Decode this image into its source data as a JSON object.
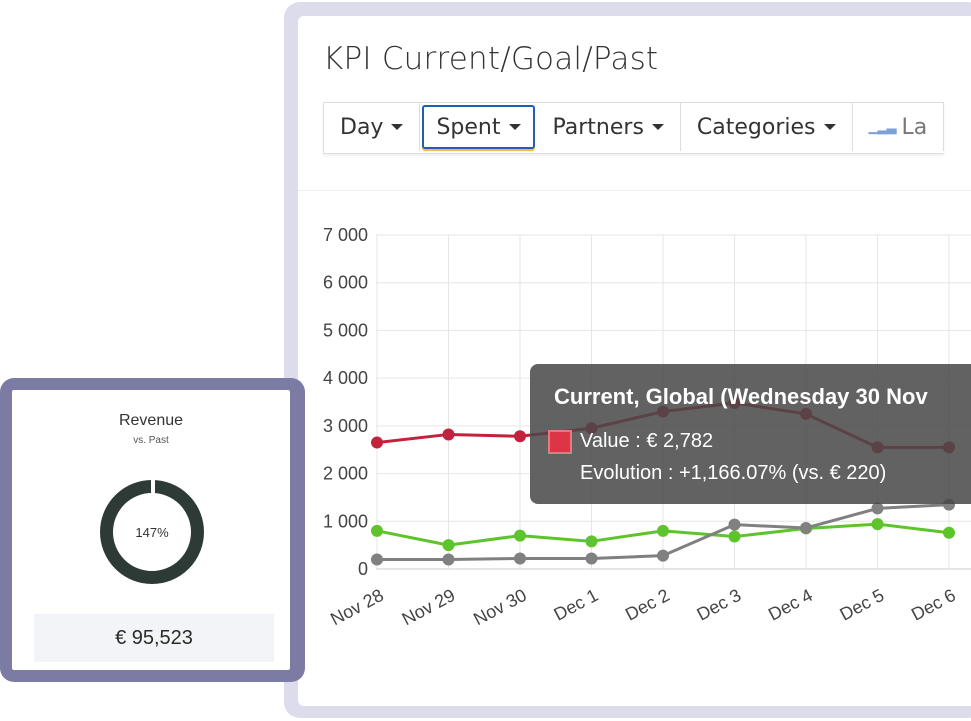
{
  "kpi_panel": {
    "title": "KPI Current/Goal/Past",
    "filters": [
      {
        "label": "Day",
        "active": false
      },
      {
        "label": "Spent",
        "active": true
      },
      {
        "label": "Partners",
        "active": false
      },
      {
        "label": "Categories",
        "active": false
      }
    ],
    "last_button_label": "La"
  },
  "chart_data": {
    "type": "line",
    "categories": [
      "Nov 28",
      "Nov 29",
      "Nov 30",
      "Dec 1",
      "Dec 2",
      "Dec 3",
      "Dec 4",
      "Dec 5",
      "Dec 6"
    ],
    "y_tick_labels": [
      "0",
      "1 000",
      "2 000",
      "3 000",
      "4 000",
      "5 000",
      "6 000",
      "7 000"
    ],
    "ylim": [
      0,
      7000
    ],
    "grid": true,
    "series": [
      {
        "values": [
          2650,
          2820,
          2782,
          2950,
          3300,
          3480,
          3250,
          2550,
          2550
        ],
        "color": "#c4223c"
      },
      {
        "values": [
          800,
          500,
          700,
          580,
          800,
          680,
          850,
          940,
          760
        ],
        "color": "#5ec42b"
      },
      {
        "values": [
          200,
          200,
          220,
          220,
          280,
          930,
          860,
          1270,
          1350
        ],
        "color": "#808080"
      }
    ]
  },
  "tooltip": {
    "title": "Current, Global (Wednesday 30 Nov",
    "value_line": "Value : € 2,782",
    "evolution_line": "Evolution : +1,166.07% (vs. € 220)",
    "swatch_color": "#dc3545"
  },
  "revenue_widget": {
    "title": "Revenue",
    "subtitle": "vs. Past",
    "percent": "147%",
    "amount": "€ 95,523",
    "ring_color": "#2e3a36"
  }
}
